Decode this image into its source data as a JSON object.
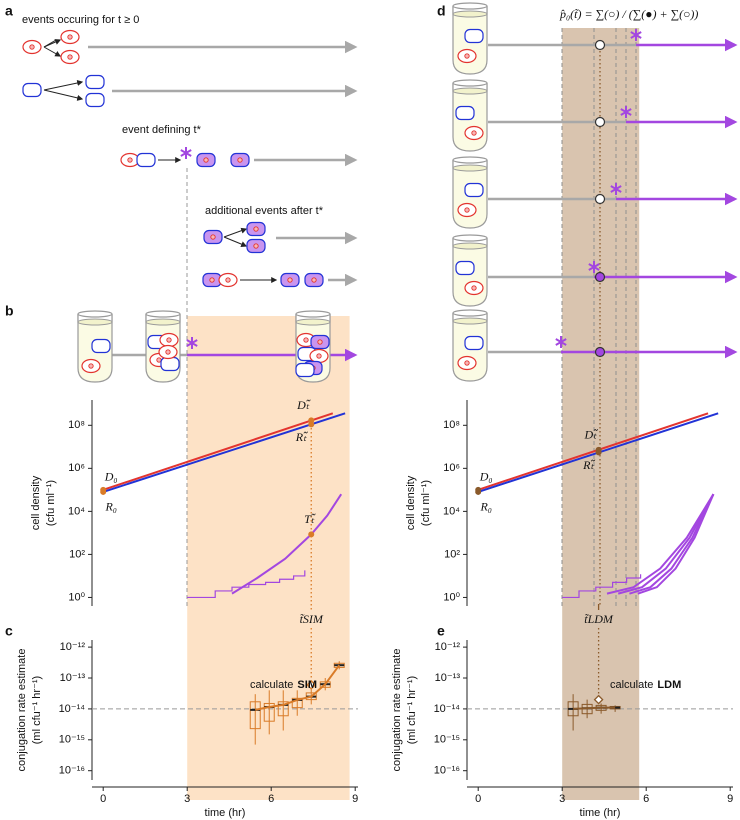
{
  "panel_labels": [
    "a",
    "b",
    "c",
    "d",
    "e"
  ],
  "diagram": {
    "events_label": "events occuring for t ≥ 0",
    "event_defining": "event defining t*",
    "additional_events": "additional events after t*",
    "formula": "p̂₀(t̃) = ∑(○) / (∑(●) + ∑(○))"
  },
  "chart_data": [
    {
      "type": "line",
      "ylabel": "cell density",
      "ylabel_unit": "(cfu ml⁻¹)",
      "yscale": "log",
      "xlim": [
        -0.4,
        9.1
      ],
      "ylim": [
        0.4,
        1500000000
      ],
      "yticks": [
        {
          "value": 1,
          "label": "10⁰"
        },
        {
          "value": 100,
          "label": "10²"
        },
        {
          "value": 10000,
          "label": "10⁴"
        },
        {
          "value": 1000000,
          "label": "10⁶"
        },
        {
          "value": 100000000,
          "label": "10⁸"
        }
      ],
      "shaded_range": [
        3,
        8.8
      ],
      "shade_color": "#fde2c6",
      "accent": "#d97b28",
      "t_tilde": 7.43,
      "t_tilde_label": "t̃SIM",
      "series": [
        {
          "color": "#e3342f",
          "x": [
            0,
            8.2
          ],
          "values": [
            100000,
            360000000
          ]
        },
        {
          "color": "#2233d6",
          "x": [
            0,
            8.64
          ],
          "values": [
            80000,
            360000000
          ]
        },
        {
          "color": "#a347e0",
          "x": [
            4.6,
            5.5,
            6.5,
            7.43,
            8.0,
            8.5
          ],
          "values": [
            1.5,
            8,
            63,
            850,
            6300,
            63000
          ]
        },
        {
          "color": "#a347e0",
          "step": true,
          "x": [
            3,
            4.0,
            4.6,
            5.2,
            5.8,
            6.3,
            6.8,
            7.2
          ],
          "values": [
            1,
            2,
            3,
            4,
            5,
            7,
            10,
            18
          ]
        }
      ],
      "annotations": [
        {
          "text": "D₀",
          "x": 0,
          "y": 100000
        },
        {
          "text": "R₀",
          "x": 0,
          "y": 80000
        },
        {
          "text": "Dₜ̃",
          "x": 7.43,
          "y": 170000000
        },
        {
          "text": "Rₜ̃",
          "x": 7.43,
          "y": 110000000
        },
        {
          "text": "Tₜ̃",
          "x": 7.43,
          "y": 850
        }
      ]
    },
    {
      "type": "box",
      "ylabel": "conjugation rate estimate",
      "ylabel_unit": "(ml cfu⁻¹ hr⁻¹)",
      "xlabel": "time (hr)",
      "yscale": "log",
      "xlim": [
        -0.4,
        9.1
      ],
      "ylim": [
        5e-17,
        1.7e-12
      ],
      "xticks": [
        0,
        3,
        6,
        9
      ],
      "yticks": [
        {
          "value": 1e-12,
          "label": "10⁻¹²"
        },
        {
          "value": 1e-13,
          "label": "10⁻¹³"
        },
        {
          "value": 1e-14,
          "label": "10⁻¹⁴"
        },
        {
          "value": 1e-15,
          "label": "10⁻¹⁵"
        },
        {
          "value": 1e-16,
          "label": "10⁻¹⁶"
        }
      ],
      "reference_line": 1e-14,
      "color": "#d97b28",
      "x": [
        5.43,
        5.93,
        6.43,
        6.93,
        7.43,
        7.93,
        8.43
      ],
      "whisker_low": [
        7e-16,
        1.5e-15,
        2e-15,
        6e-15,
        1.4e-14,
        4e-14,
        1.9e-13
      ],
      "q1": [
        2.3e-15,
        4e-15,
        6e-15,
        1.1e-14,
        2e-14,
        5e-14,
        2.2e-13
      ],
      "median": [
        9.3e-15,
        1.15e-14,
        1.35e-14,
        1.95e-14,
        2.5e-14,
        6.3e-14,
        2.6e-13
      ],
      "q3": [
        1.7e-14,
        1.5e-14,
        1.7e-14,
        2.2e-14,
        3.3e-14,
        7.5e-14,
        3e-13
      ],
      "whisker_high": [
        3e-14,
        4e-14,
        4e-14,
        4e-14,
        5e-14,
        1e-13,
        3.5e-13
      ],
      "estimate": {
        "x": 7.43,
        "y": 6e-14
      },
      "annotation": "calculate",
      "method": "SIM"
    },
    {
      "type": "line",
      "ylabel": "cell density",
      "ylabel_unit": "(cfu ml⁻¹)",
      "yscale": "log",
      "xlim": [
        -0.4,
        9.1
      ],
      "ylim": [
        0.4,
        1500000000
      ],
      "yticks": [
        {
          "value": 1,
          "label": "10⁰"
        },
        {
          "value": 100,
          "label": "10²"
        },
        {
          "value": 10000,
          "label": "10⁴"
        },
        {
          "value": 1000000,
          "label": "10⁶"
        },
        {
          "value": 100000000,
          "label": "10⁸"
        }
      ],
      "shaded_range": [
        3,
        5.75
      ],
      "shade_color": "#d9c4af",
      "accent": "#8a5a2b",
      "t_tilde": 4.3,
      "t_tilde_label": "t̃LDM",
      "series": [
        {
          "color": "#e3342f",
          "x": [
            0,
            8.21
          ],
          "values": [
            100000,
            360000000
          ]
        },
        {
          "color": "#2233d6",
          "x": [
            0,
            8.57
          ],
          "values": [
            80000,
            360000000
          ]
        },
        {
          "color": "#a347e0",
          "x": [
            4.6,
            5.55,
            6.5,
            7.45,
            8.4
          ],
          "values": [
            1.5,
            3,
            22,
            600,
            63000
          ]
        },
        {
          "color": "#a347e0",
          "x": [
            5.0,
            5.85,
            6.7,
            7.55,
            8.4
          ],
          "values": [
            1.5,
            3,
            22,
            600,
            63000
          ]
        },
        {
          "color": "#a347e0",
          "x": [
            5.4,
            6.15,
            6.9,
            7.65,
            8.4
          ],
          "values": [
            1.5,
            3,
            22,
            600,
            63000
          ]
        },
        {
          "color": "#a347e0",
          "x": [
            5.7,
            6.38,
            7.05,
            7.73,
            8.4
          ],
          "values": [
            1.5,
            3,
            22,
            600,
            63000
          ]
        },
        {
          "color": "#a347e0",
          "step": true,
          "x": [
            3,
            3.6,
            4.2,
            4.8,
            5.3,
            5.8
          ],
          "values": [
            1,
            2,
            3,
            5,
            8,
            12
          ]
        }
      ],
      "annotations": [
        {
          "text": "D₀",
          "x": 0,
          "y": 100000
        },
        {
          "text": "R₀",
          "x": 0,
          "y": 80000
        },
        {
          "text": "Dₜ̃",
          "x": 4.3,
          "y": 7200000
        },
        {
          "text": "Rₜ̃",
          "x": 4.3,
          "y": 5500000
        }
      ]
    },
    {
      "type": "box",
      "ylabel": "conjugation rate estimate",
      "ylabel_unit": "(ml cfu⁻¹ hr⁻¹)",
      "xlabel": "time (hr)",
      "yscale": "log",
      "xlim": [
        -0.4,
        9.1
      ],
      "ylim": [
        5e-17,
        1.7e-12
      ],
      "xticks": [
        0,
        3,
        6,
        9
      ],
      "yticks": [
        {
          "value": 1e-12,
          "label": "10⁻¹²"
        },
        {
          "value": 1e-13,
          "label": "10⁻¹³"
        },
        {
          "value": 1e-14,
          "label": "10⁻¹⁴"
        },
        {
          "value": 1e-15,
          "label": "10⁻¹⁵"
        },
        {
          "value": 1e-16,
          "label": "10⁻¹⁶"
        }
      ],
      "reference_line": 1e-14,
      "color": "#8a5a2b",
      "x": [
        3.39,
        3.89,
        4.39,
        4.89
      ],
      "whisker_low": [
        2e-15,
        5e-15,
        7e-15,
        8e-15
      ],
      "q1": [
        6e-15,
        7e-15,
        9e-15,
        1e-14
      ],
      "median": [
        1e-14,
        1.05e-14,
        1.1e-14,
        1.1e-14
      ],
      "q3": [
        1.7e-14,
        1.4e-14,
        1.3e-14,
        1.2e-14
      ],
      "whisker_high": [
        3e-14,
        2e-14,
        1.5e-14,
        1.3e-14
      ],
      "estimate": {
        "x": 4.3,
        "y": 2e-14
      },
      "annotation": "calculate",
      "method": "LDM"
    }
  ]
}
